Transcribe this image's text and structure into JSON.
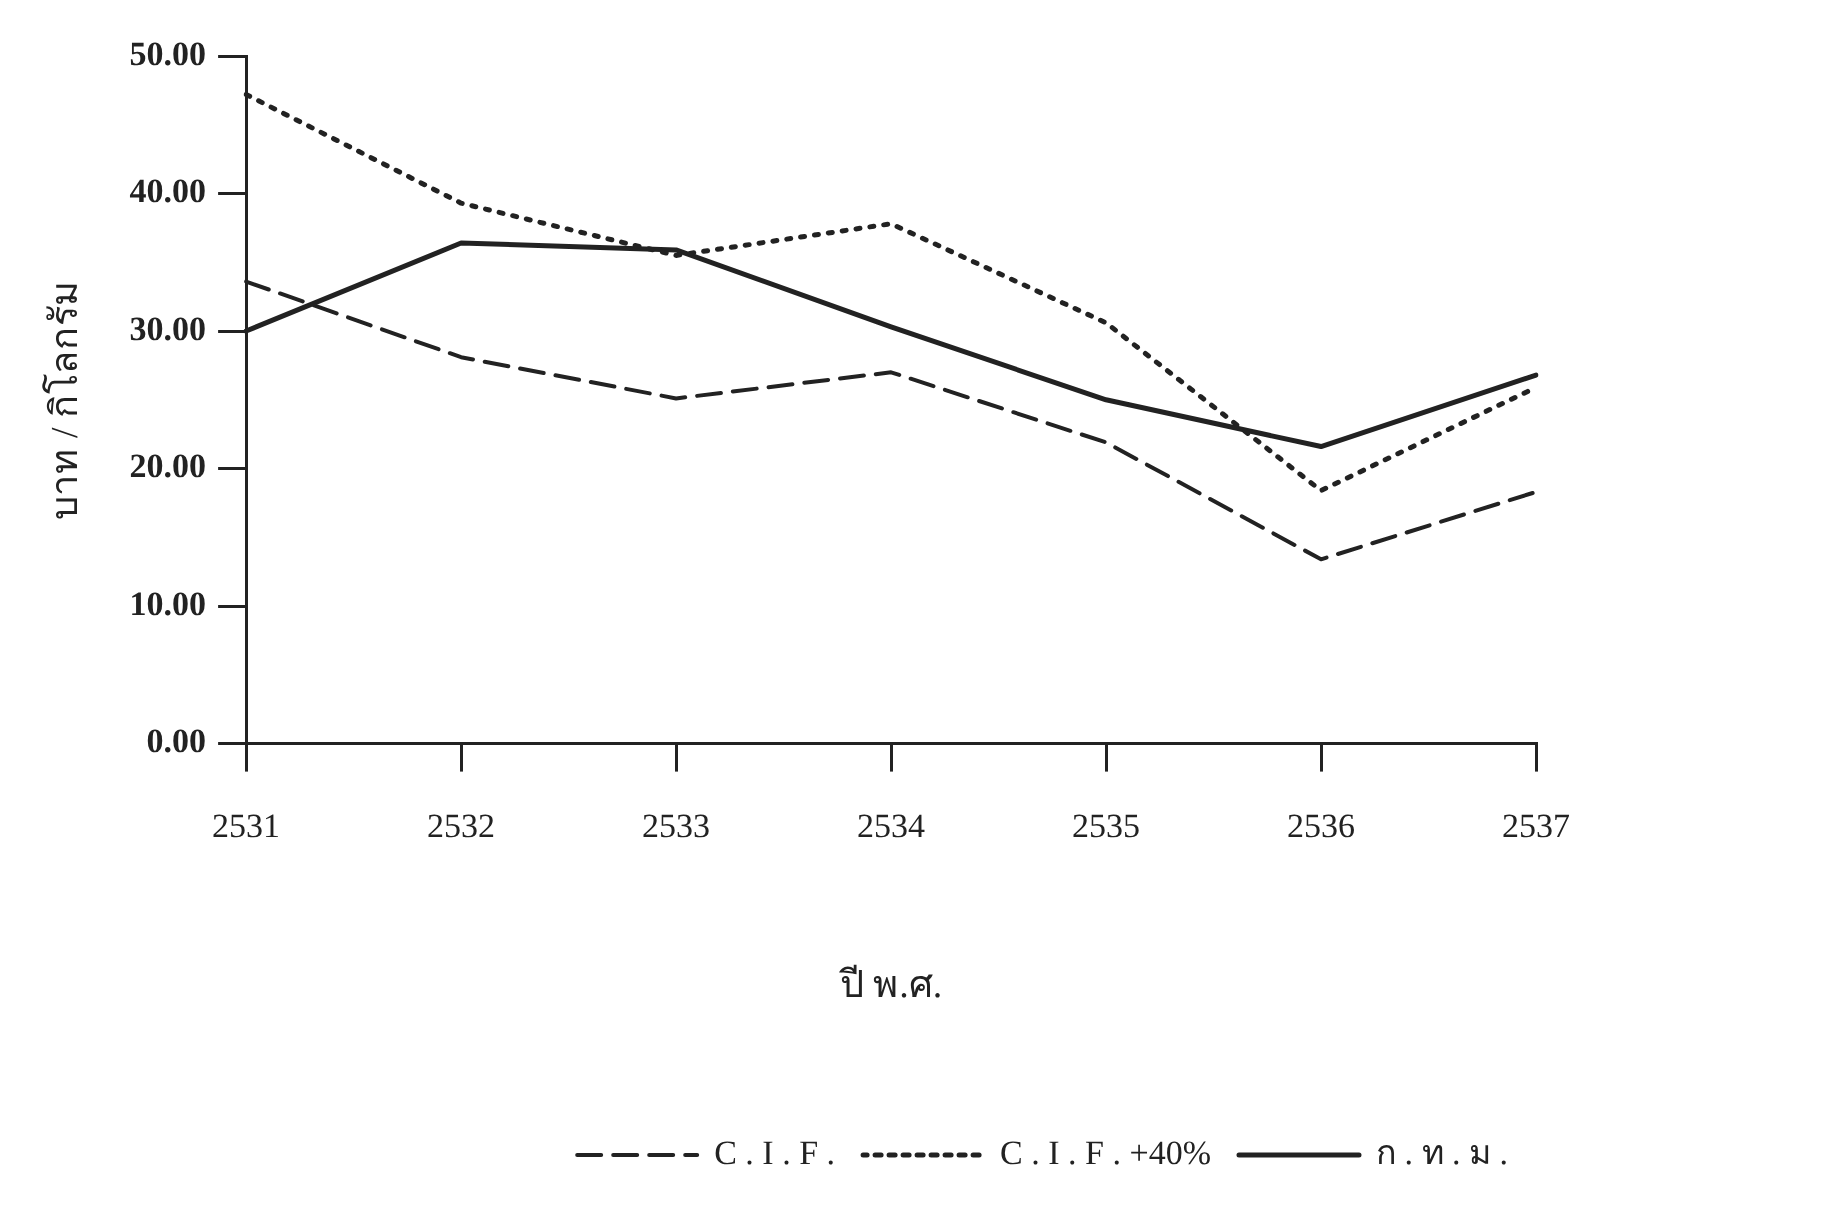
{
  "chart_data": {
    "type": "line",
    "xlabel": "ปี พ.ศ.",
    "ylabel": "บาท / กิโลกรัม",
    "categories": [
      "2531",
      "2532",
      "2533",
      "2534",
      "2535",
      "2536",
      "2537"
    ],
    "series": [
      {
        "name": "C . I . F .",
        "color": "#222222",
        "line_style": "dashed",
        "values": [
          33.6,
          28.1,
          25.1,
          27.0,
          21.9,
          13.4,
          18.3
        ]
      },
      {
        "name": "C . I . F . +40%",
        "color": "#222222",
        "line_style": "dotted",
        "values": [
          47.2,
          39.3,
          35.5,
          37.8,
          30.6,
          18.4,
          25.9
        ]
      },
      {
        "name": "ก . ท . ม .",
        "color": "#222222",
        "line_style": "solid",
        "values": [
          30.0,
          36.4,
          35.9,
          30.3,
          25.0,
          21.6,
          26.8
        ]
      }
    ],
    "ylim": [
      0,
      50
    ],
    "yticks": [
      {
        "value": 0,
        "label": "0.00"
      },
      {
        "value": 10,
        "label": "10.00"
      },
      {
        "value": 20,
        "label": "20.00"
      },
      {
        "value": 30,
        "label": "30.00"
      },
      {
        "value": 40,
        "label": "40.00"
      },
      {
        "value": 50,
        "label": "50.00"
      }
    ],
    "grid": false,
    "legend": "bottom right",
    "marker": "none"
  }
}
